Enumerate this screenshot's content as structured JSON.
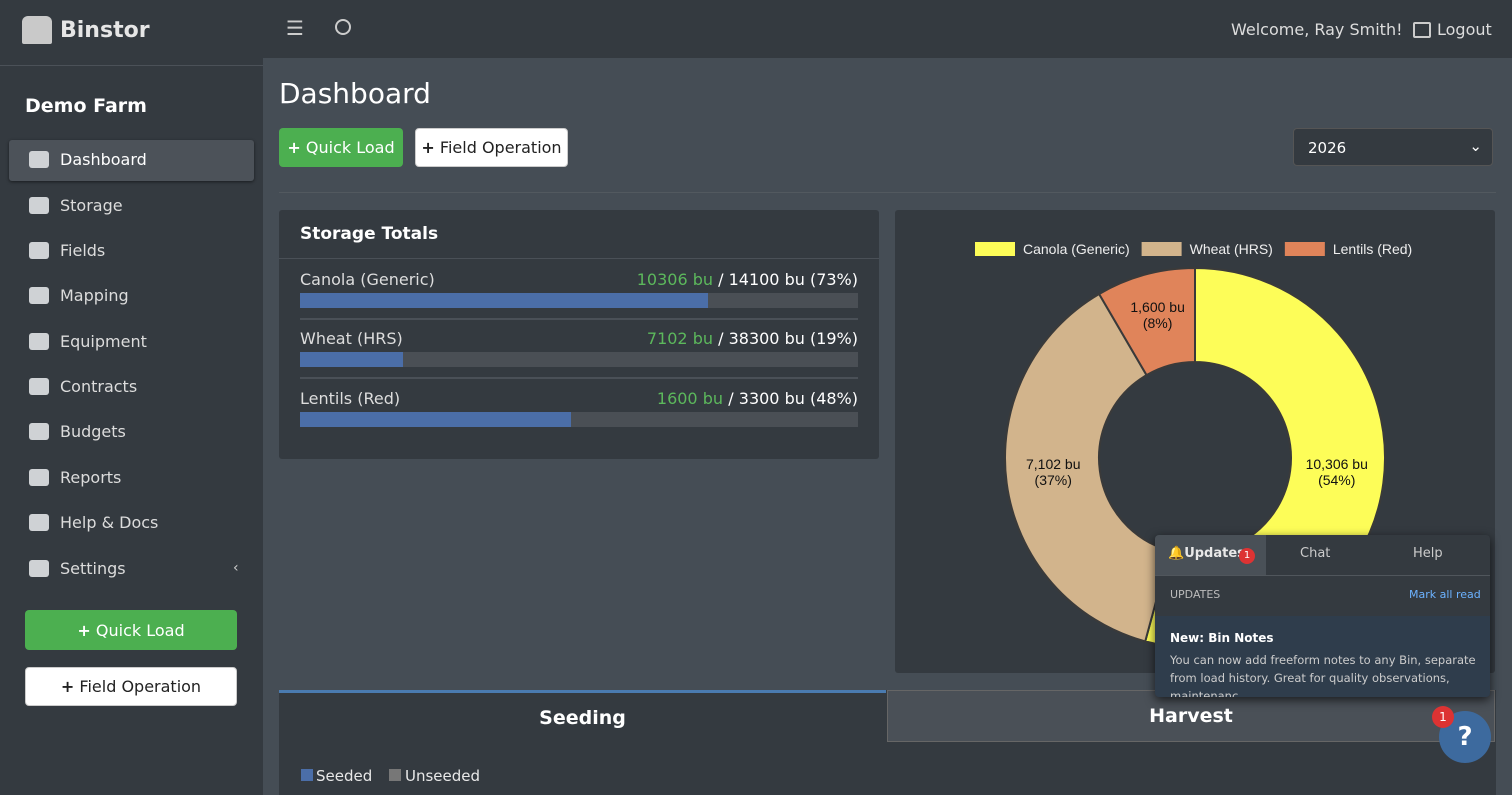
{
  "brand": "Binstor",
  "farm": "Demo Farm",
  "nav": [
    "Dashboard",
    "Storage",
    "Fields",
    "Mapping",
    "Equipment",
    "Contracts",
    "Budgets",
    "Reports",
    "Help & Docs",
    "Settings"
  ],
  "sidebar_buttons": [
    "Quick Load",
    "Field Operation"
  ],
  "topbar": {
    "welcome": "Welcome, Ray Smith!",
    "logout": "Logout"
  },
  "header": {
    "title": "Dashboard",
    "buttons": [
      "Quick Load",
      "Field Operation"
    ],
    "year": "2026"
  },
  "storage_totals": {
    "title": "Storage Totals",
    "rows": [
      {
        "name": "Canola (Generic)",
        "stored": {
          "value": 10306,
          "label": "10306 bu"
        },
        "total": {
          "value": 14100,
          "label": "/ 14100 bu (73%)"
        }
      },
      {
        "name": "Wheat (HRS)",
        "stored": {
          "value": 7102,
          "label": "7102 bu"
        },
        "total": {
          "value": 38300,
          "label": "/ 38300 bu (19%)"
        }
      },
      {
        "name": "Lentils (Red)",
        "stored": {
          "value": 1600,
          "label": "1600 bu"
        },
        "total": {
          "value": 3300,
          "label": "/ 3300 bu (48%)"
        }
      }
    ]
  },
  "chart_data": {
    "type": "pie",
    "categories": [
      "Canola (Generic)",
      "Wheat (HRS)",
      "Lentils (Red)"
    ],
    "values": [
      10306,
      7102,
      1600
    ],
    "value_labels": [
      "10,306 bu",
      "7,102 bu",
      "1,600 bu"
    ],
    "percent_labels": [
      "(54%)",
      "(37%)",
      "(8%)"
    ],
    "colors": [
      "#fdfd58",
      "#d2b48c",
      "#e0845a"
    ],
    "legend": "top"
  },
  "updates": {
    "tabs": [
      "Updates",
      "Chat",
      "Help"
    ],
    "badge": "1",
    "heading": "UPDATES",
    "mark_all": "Mark all read",
    "item_title": "New: Bin Notes",
    "item_text": "You can now add freeform notes to any Bin, separate from load history. Great for quality observations, maintenanc…"
  },
  "tabs": [
    "Seeding",
    "Harvest"
  ],
  "seeding_legend": [
    "Seeded",
    "Unseeded"
  ],
  "help_badge": "1",
  "help_icon": "?"
}
